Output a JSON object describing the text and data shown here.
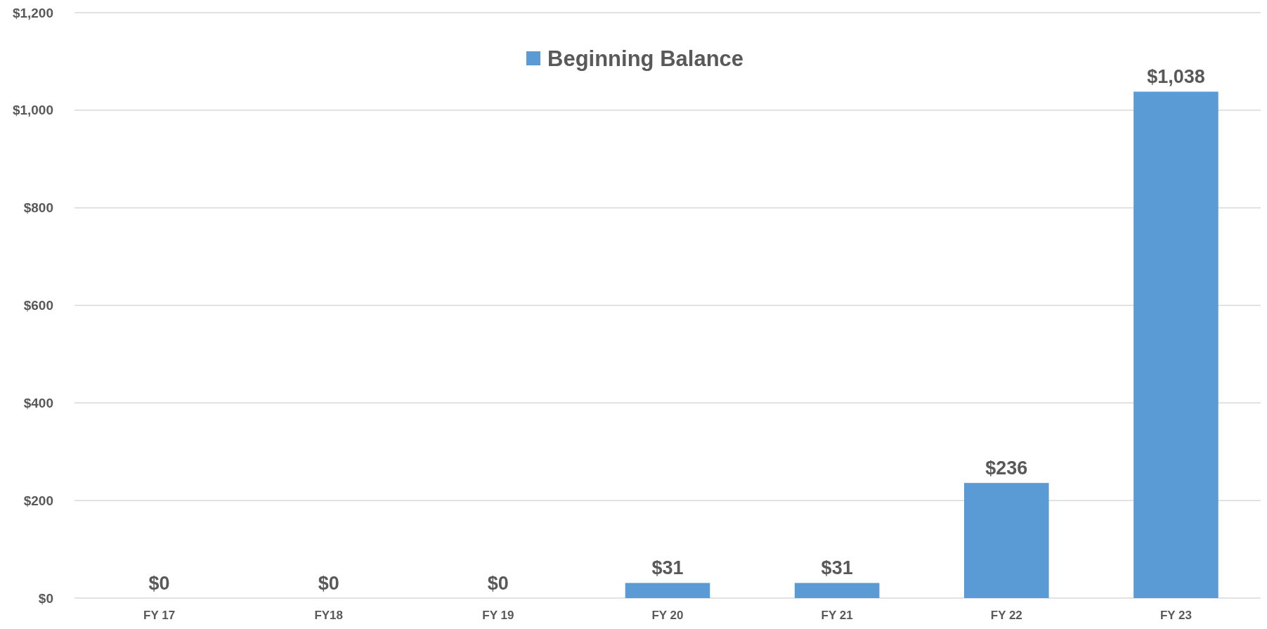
{
  "chart_data": {
    "type": "bar",
    "categories": [
      "FY 17",
      "FY18",
      "FY 19",
      "FY 20",
      "FY 21",
      "FY 22",
      "FY 23"
    ],
    "series": [
      {
        "name": "Beginning Balance",
        "color": "#5b9bd5",
        "values": [
          0,
          0,
          0,
          31,
          31,
          236,
          1038
        ],
        "value_labels": [
          "$0",
          "$0",
          "$0",
          "$31",
          "$31",
          "$236",
          "$1,038"
        ]
      }
    ],
    "ylim": [
      0,
      1200
    ],
    "yticks": [
      {
        "value": 0,
        "label": "$0"
      },
      {
        "value": 200,
        "label": "$200"
      },
      {
        "value": 400,
        "label": "$400"
      },
      {
        "value": 600,
        "label": "$600"
      },
      {
        "value": 800,
        "label": "$800"
      },
      {
        "value": 1000,
        "label": "$1,000"
      },
      {
        "value": 1200,
        "label": "$1,200"
      }
    ],
    "grid": "y",
    "legend": "top"
  }
}
